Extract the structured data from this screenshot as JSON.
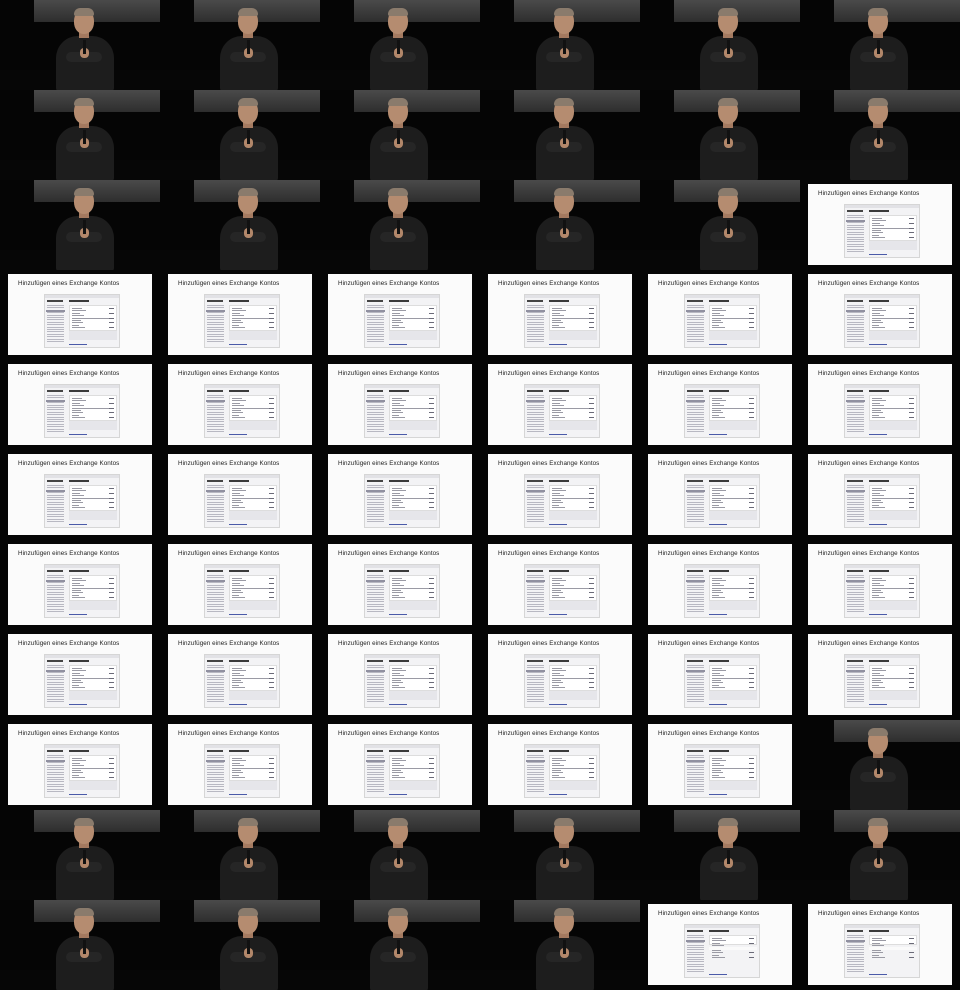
{
  "contact_sheet": {
    "slide_title": "Hinzufügen eines Exchange Kontos",
    "columns": 6,
    "rows": 11,
    "frames": [
      "speaker",
      "speaker",
      "speaker",
      "speaker",
      "speaker",
      "speaker",
      "speaker",
      "speaker",
      "speaker",
      "speaker",
      "speaker",
      "speaker",
      "speaker",
      "speaker",
      "speaker",
      "speaker",
      "speaker",
      "slide",
      "slide",
      "slide",
      "slide",
      "slide",
      "slide",
      "slide",
      "slide",
      "slide",
      "slide",
      "slide",
      "slide",
      "slide",
      "slide",
      "slide",
      "slide",
      "slide",
      "slide",
      "slide",
      "slide",
      "slide",
      "slide",
      "slide",
      "slide",
      "slide",
      "slide",
      "slide",
      "slide",
      "slide",
      "slide",
      "slide",
      "slide",
      "slide",
      "slide",
      "slide",
      "slide",
      "speaker",
      "speaker",
      "speaker",
      "speaker",
      "speaker",
      "speaker",
      "speaker",
      "speaker",
      "speaker",
      "speaker",
      "speaker",
      "slide-v2",
      "slide-v2"
    ]
  },
  "colors": {
    "background": "#000000",
    "slide_background": "#fbfbfb",
    "speaker_shirt": "#1d1d1d",
    "stage_light": "#4a4a4a"
  }
}
